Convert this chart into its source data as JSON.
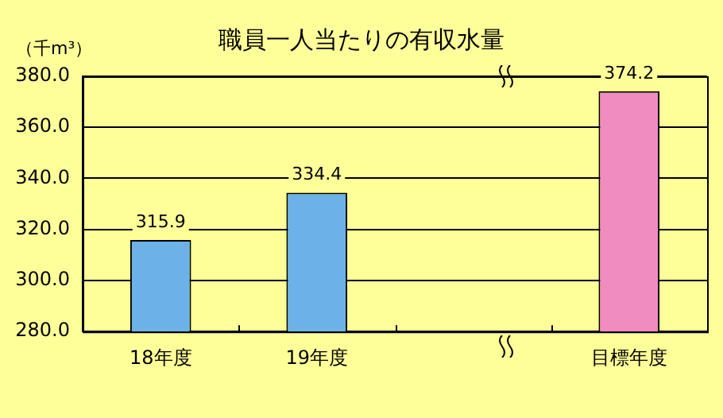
{
  "chart_data": {
    "type": "bar",
    "title": "職員一人当たりの有収水量",
    "ylabel": "（千m³）",
    "categories": [
      "18年度",
      "19年度",
      null,
      "目標年度"
    ],
    "values": [
      315.9,
      334.4,
      null,
      374.2
    ],
    "colors": [
      "#6cb2e8",
      "#6cb2e8",
      "#6cb2e8",
      "#f08cc0"
    ],
    "ylim": [
      280,
      380
    ],
    "yticks": [
      {
        "value": 280,
        "label": "280.0"
      },
      {
        "value": 300,
        "label": "300.0"
      },
      {
        "value": 320,
        "label": "320.0"
      },
      {
        "value": 340,
        "label": "340.0"
      },
      {
        "value": 360,
        "label": "360.0"
      },
      {
        "value": 380,
        "label": "380.0"
      }
    ],
    "grid": "y",
    "data_labels": true,
    "legend": false
  }
}
